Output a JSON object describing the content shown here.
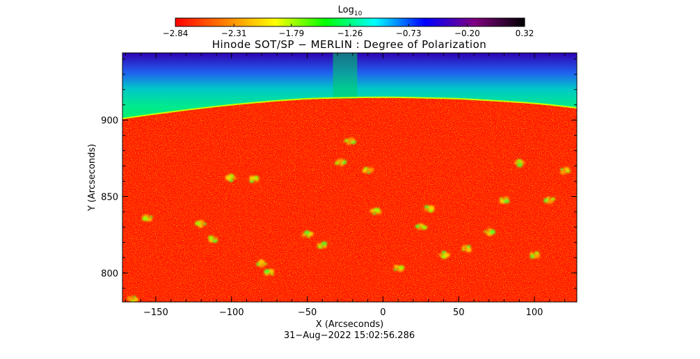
{
  "chart_data": {
    "type": "heatmap",
    "title": "Hinode SOT/SP − MERLIN : Degree of Polarization",
    "xlabel": "X (Arcseconds)",
    "ylabel": "Y (Arcseconds)",
    "xlim": [
      -172,
      128
    ],
    "ylim": [
      781,
      944
    ],
    "x_ticks": [
      -150,
      -100,
      -50,
      0,
      50,
      100
    ],
    "x_tick_labels": [
      "−150",
      "−100",
      "−50",
      "0",
      "50",
      "100"
    ],
    "y_ticks": [
      800,
      850,
      900
    ],
    "y_tick_labels": [
      "800",
      "850",
      "900"
    ],
    "timestamp": "31−Aug−2022 15:02:56.286",
    "colorbar": {
      "label": "Log",
      "label_subscript": "10",
      "range": [
        -2.84,
        0.32
      ],
      "tick_values": [
        -2.84,
        -2.31,
        -1.79,
        -1.26,
        -0.73,
        -0.2,
        0.32
      ],
      "tick_labels": [
        "−2.84",
        "−2.31",
        "−1.79",
        "−1.26",
        "−0.73",
        "−0.20",
        "0.32"
      ],
      "colors": [
        "#ff0000",
        "#ff8000",
        "#ffff00",
        "#00ff00",
        "#00ffff",
        "#0000ff",
        "#800080",
        "#000000"
      ]
    },
    "map": {
      "limb_y_at_x": [
        [
          -172,
          901
        ],
        [
          -100,
          910
        ],
        [
          -50,
          914
        ],
        [
          0,
          915
        ],
        [
          50,
          914
        ],
        [
          100,
          911
        ],
        [
          128,
          908
        ]
      ],
      "off_limb_value_range": [
        -1.5,
        -0.4
      ],
      "disk_background_value": -2.75,
      "disk_feature_value": -1.3,
      "disk_features_xy": [
        [
          -165,
          783
        ],
        [
          -155,
          836
        ],
        [
          -120,
          832
        ],
        [
          -112,
          822
        ],
        [
          -100,
          862
        ],
        [
          -85,
          861
        ],
        [
          -80,
          806
        ],
        [
          -75,
          800
        ],
        [
          -50,
          825
        ],
        [
          -40,
          818
        ],
        [
          -28,
          872
        ],
        [
          -22,
          886
        ],
        [
          -10,
          867
        ],
        [
          -5,
          840
        ],
        [
          10,
          803
        ],
        [
          25,
          830
        ],
        [
          30,
          842
        ],
        [
          40,
          812
        ],
        [
          55,
          816
        ],
        [
          70,
          827
        ],
        [
          80,
          848
        ],
        [
          90,
          872
        ],
        [
          100,
          812
        ],
        [
          110,
          848
        ],
        [
          120,
          867
        ]
      ]
    }
  }
}
